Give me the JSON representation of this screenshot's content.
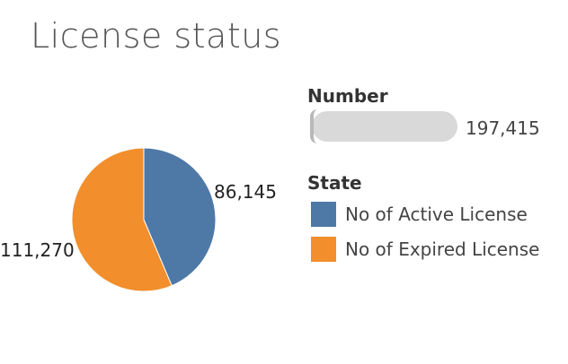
{
  "chart_data": {
    "type": "pie",
    "title": "License status",
    "categories": [
      "No of Active License",
      "No of Expired License"
    ],
    "values": [
      86145,
      111270
    ],
    "value_labels": [
      "86,145",
      "111,270"
    ],
    "colors": [
      "#4e79a7",
      "#f28e2b"
    ],
    "size_legend": {
      "title": "Number",
      "value": "197,415"
    },
    "color_legend": {
      "title": "State",
      "placement": "right",
      "items": [
        {
          "label": "No of Active License",
          "color": "#4e79a7"
        },
        {
          "label": "No of Expired License",
          "color": "#f28e2b"
        }
      ]
    }
  }
}
